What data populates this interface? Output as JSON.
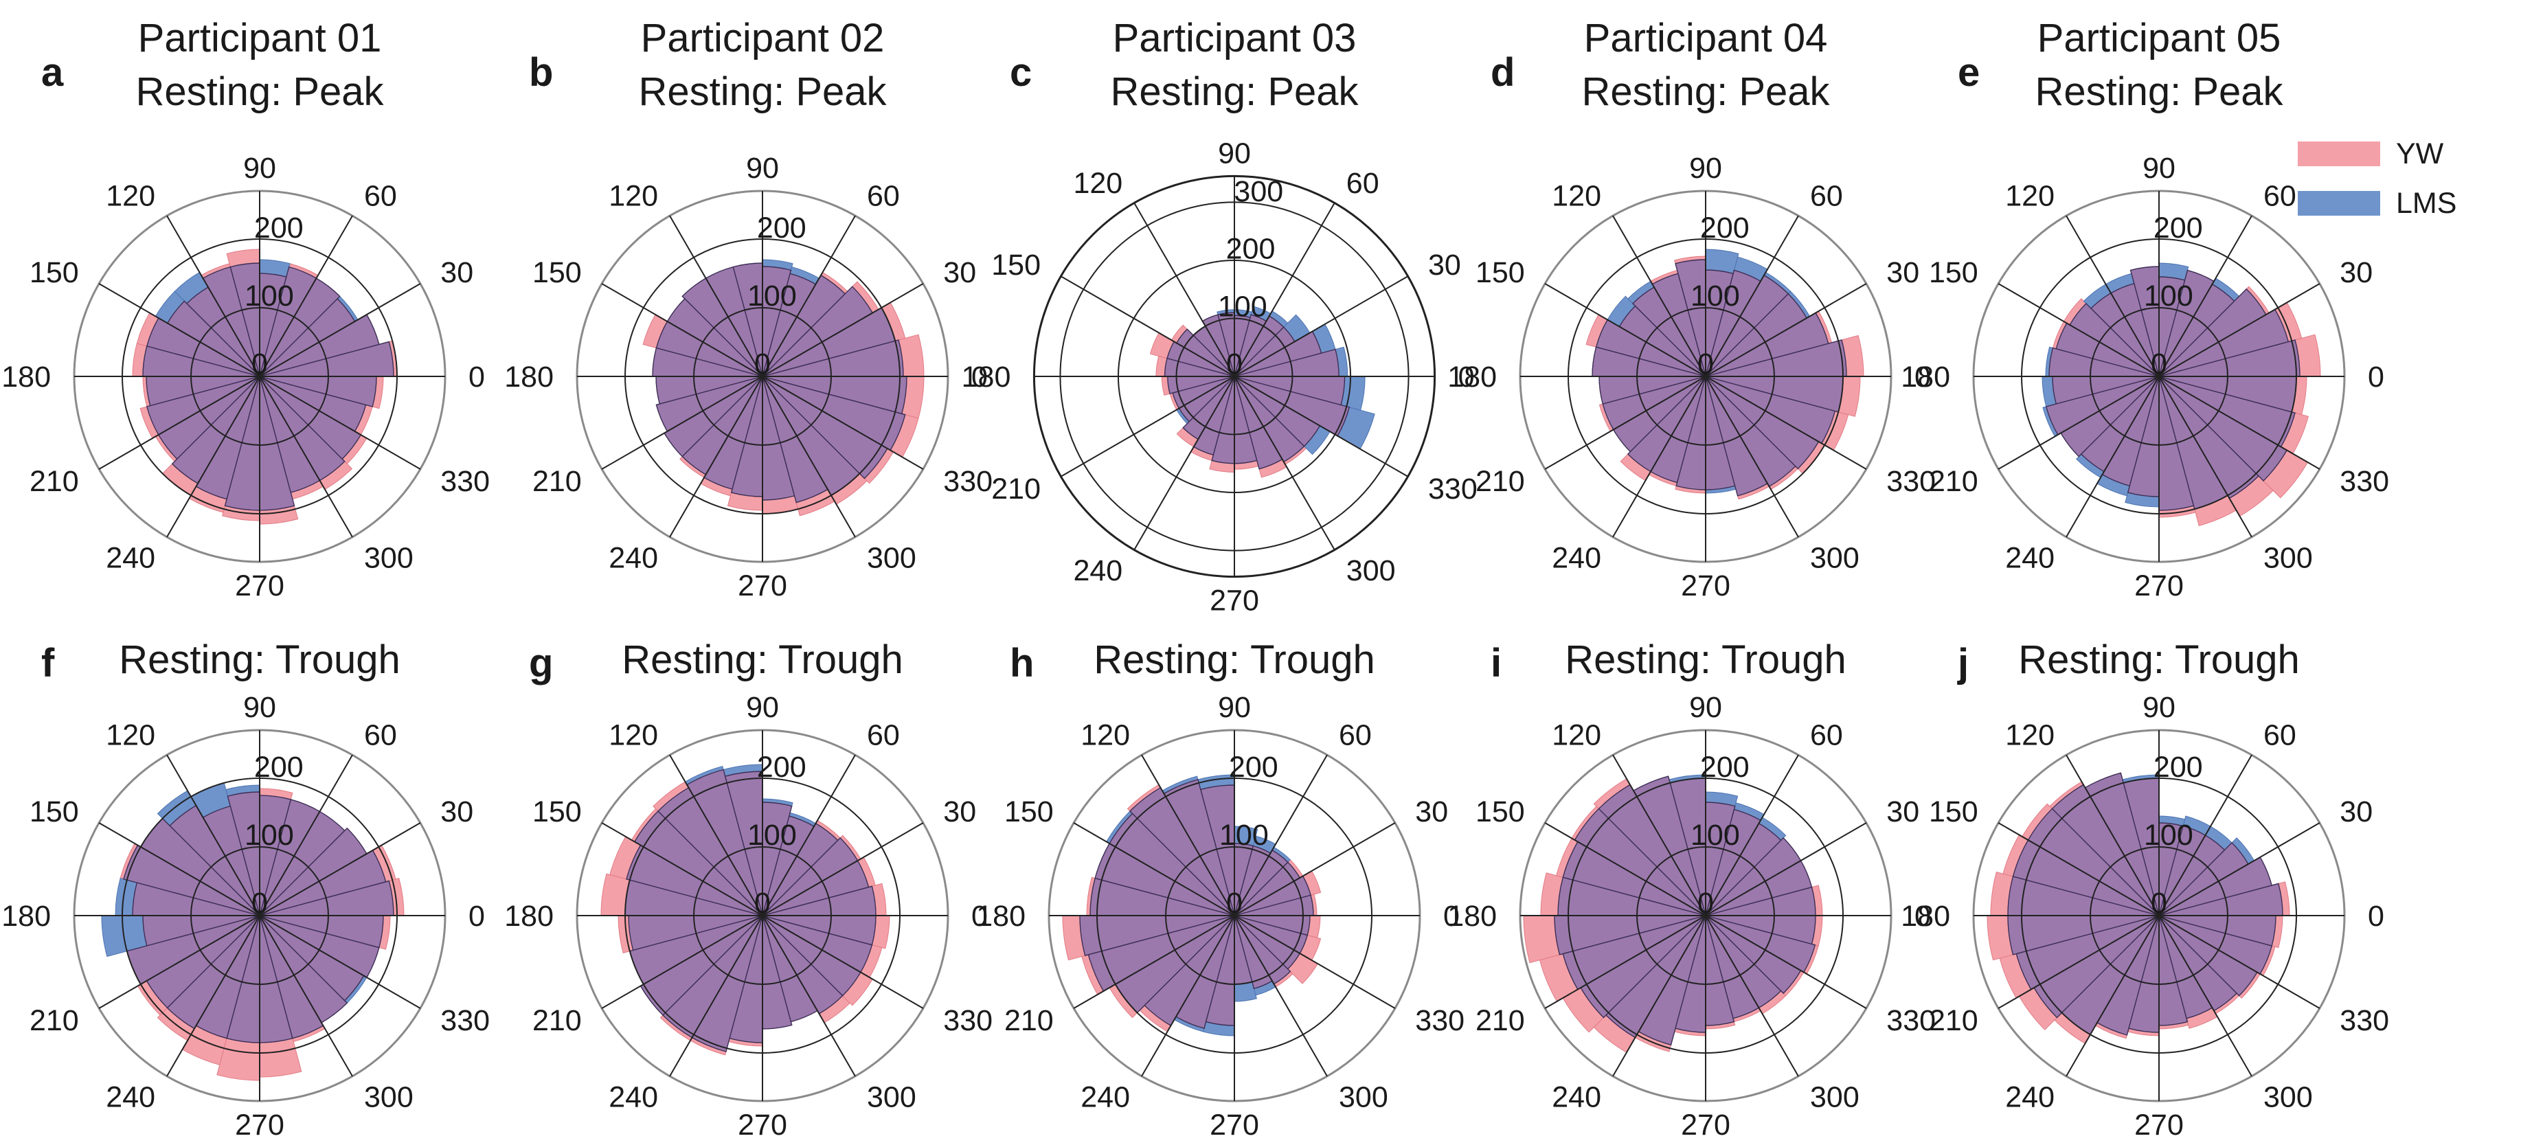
{
  "chart_data": [
    {
      "type": "polar-histogram",
      "letter": "a",
      "title": [
        "Participant 01",
        "Resting: Peak"
      ],
      "angle_ticks": [
        "0",
        "30",
        "60",
        "90",
        "120",
        "150",
        "180",
        "210",
        "240",
        "270",
        "300",
        "330"
      ],
      "radial_ticks": [
        "0",
        "100",
        "200"
      ],
      "rmax": 270,
      "bin_width_deg": 15,
      "series": [
        {
          "name": "YW",
          "values": [
            200,
            180,
            160,
            165,
            170,
            150,
            185,
            170,
            150,
            155,
            185,
            185,
            170,
            180,
            175,
            200,
            205,
            210,
            215,
            185,
            190,
            180,
            170,
            180
          ]
        },
        {
          "name": "LMS",
          "values": [
            195,
            180,
            165,
            165,
            165,
            170,
            165,
            165,
            175,
            175,
            170,
            170,
            165,
            170,
            170,
            180,
            185,
            195,
            195,
            175,
            175,
            170,
            160,
            170
          ]
        }
      ]
    },
    {
      "type": "polar-histogram",
      "letter": "b",
      "title": [
        "Participant 02",
        "Resting: Peak"
      ],
      "angle_ticks": [
        "0",
        "30",
        "60",
        "90",
        "120",
        "150",
        "180",
        "210",
        "240",
        "270",
        "300",
        "330"
      ],
      "radial_ticks": [
        "0",
        "100",
        "200"
      ],
      "rmax": 270,
      "bin_width_deg": 15,
      "series": [
        {
          "name": "YW",
          "values": [
            235,
            215,
            195,
            175,
            155,
            160,
            165,
            165,
            165,
            160,
            180,
            160,
            155,
            160,
            165,
            170,
            180,
            195,
            200,
            210,
            215,
            220,
            235,
            235
          ]
        },
        {
          "name": "LMS",
          "values": [
            205,
            200,
            185,
            170,
            165,
            170,
            165,
            165,
            165,
            160,
            160,
            160,
            155,
            160,
            165,
            165,
            170,
            175,
            180,
            190,
            200,
            210,
            215,
            210
          ]
        }
      ]
    },
    {
      "type": "polar-histogram",
      "letter": "c",
      "title": [
        "Participant 03",
        "Resting: Peak"
      ],
      "angle_ticks": [
        "0",
        "30",
        "60",
        "90",
        "120",
        "150",
        "180",
        "210",
        "240",
        "270",
        "300",
        "330"
      ],
      "radial_ticks": [
        "0",
        "100",
        "200",
        "300"
      ],
      "rmax": 345,
      "bin_width_deg": 15,
      "series": [
        {
          "name": "YW",
          "values": [
            180,
            155,
            120,
            120,
            110,
            105,
            110,
            110,
            100,
            125,
            150,
            135,
            125,
            115,
            110,
            140,
            150,
            165,
            160,
            180,
            175,
            170,
            205,
            190
          ]
        },
        {
          "name": "LMS",
          "values": [
            195,
            180,
            150,
            130,
            125,
            115,
            115,
            110,
            100,
            115,
            120,
            120,
            115,
            110,
            115,
            125,
            140,
            150,
            150,
            165,
            170,
            190,
            250,
            225
          ]
        }
      ]
    },
    {
      "type": "polar-histogram",
      "letter": "d",
      "title": [
        "Participant 04",
        "Resting: Peak"
      ],
      "angle_ticks": [
        "0",
        "30",
        "60",
        "90",
        "120",
        "150",
        "180",
        "210",
        "240",
        "270",
        "300",
        "330"
      ],
      "radial_ticks": [
        "0",
        "100",
        "200"
      ],
      "rmax": 270,
      "bin_width_deg": 15,
      "series": [
        {
          "name": "YW",
          "values": [
            230,
            190,
            170,
            170,
            160,
            155,
            175,
            160,
            150,
            145,
            180,
            165,
            155,
            160,
            155,
            175,
            165,
            170,
            165,
            185,
            190,
            200,
            215,
            225
          ]
        },
        {
          "name": "LMS",
          "values": [
            205,
            185,
            175,
            175,
            180,
            185,
            170,
            155,
            160,
            165,
            165,
            165,
            155,
            155,
            155,
            160,
            160,
            165,
            170,
            180,
            185,
            190,
            195,
            200
          ]
        }
      ]
    },
    {
      "type": "polar-histogram",
      "letter": "e",
      "title": [
        "Participant 05",
        "Resting: Peak"
      ],
      "angle_ticks": [
        "0",
        "30",
        "60",
        "90",
        "120",
        "150",
        "180",
        "210",
        "240",
        "270",
        "300",
        "330"
      ],
      "radial_ticks": [
        "0",
        "100",
        "200"
      ],
      "rmax": 270,
      "bin_width_deg": 15,
      "series": [
        {
          "name": "YW",
          "values": [
            235,
            215,
            185,
            155,
            160,
            145,
            160,
            140,
            140,
            160,
            160,
            160,
            155,
            170,
            165,
            160,
            165,
            175,
            205,
            225,
            235,
            250,
            225,
            215
          ]
        },
        {
          "name": "LMS",
          "values": [
            205,
            195,
            180,
            165,
            160,
            165,
            160,
            155,
            155,
            150,
            155,
            165,
            170,
            175,
            165,
            170,
            180,
            190,
            195,
            200,
            205,
            215,
            205,
            200
          ]
        }
      ]
    },
    {
      "type": "polar-histogram",
      "letter": "f",
      "title": [
        "Resting: Trough"
      ],
      "angle_ticks": [
        "0",
        "30",
        "60",
        "90",
        "120",
        "150",
        "180",
        "210",
        "240",
        "270",
        "300",
        "330"
      ],
      "radial_ticks": [
        "0",
        "100",
        "200"
      ],
      "rmax": 270,
      "bin_width_deg": 15,
      "series": [
        {
          "name": "YW",
          "values": [
            210,
            205,
            180,
            175,
            175,
            185,
            180,
            165,
            185,
            200,
            210,
            185,
            170,
            200,
            205,
            210,
            225,
            240,
            235,
            190,
            180,
            175,
            180,
            190
          ]
        },
        {
          "name": "LMS",
          "values": [
            195,
            190,
            180,
            175,
            175,
            175,
            190,
            200,
            210,
            200,
            205,
            210,
            230,
            200,
            190,
            190,
            185,
            185,
            185,
            185,
            180,
            180,
            180,
            180
          ]
        }
      ]
    },
    {
      "type": "polar-histogram",
      "letter": "g",
      "title": [
        "Resting: Trough"
      ],
      "angle_ticks": [
        "0",
        "30",
        "60",
        "90",
        "120",
        "150",
        "180",
        "210",
        "240",
        "270",
        "300",
        "330"
      ],
      "radial_ticks": [
        "0",
        "100",
        "200"
      ],
      "rmax": 270,
      "bin_width_deg": 15,
      "series": [
        {
          "name": "YW",
          "values": [
            180,
            170,
            165,
            160,
            150,
            165,
            210,
            220,
            225,
            220,
            230,
            235,
            210,
            200,
            205,
            210,
            210,
            190,
            165,
            160,
            180,
            185,
            180,
            185
          ]
        },
        {
          "name": "LMS",
          "values": [
            165,
            160,
            160,
            155,
            155,
            170,
            220,
            225,
            215,
            215,
            205,
            200,
            195,
            200,
            205,
            205,
            205,
            185,
            165,
            160,
            165,
            165,
            165,
            165
          ]
        }
      ]
    },
    {
      "type": "polar-histogram",
      "letter": "h",
      "title": [
        "Resting: Trough"
      ],
      "angle_ticks": [
        "0",
        "30",
        "60",
        "90",
        "120",
        "150",
        "180",
        "210",
        "240",
        "270",
        "300",
        "330"
      ],
      "radial_ticks": [
        "0",
        "100",
        "200"
      ],
      "rmax": 270,
      "bin_width_deg": 15,
      "series": [
        {
          "name": "YW",
          "values": [
            120,
            130,
            115,
            110,
            105,
            105,
            190,
            205,
            220,
            210,
            210,
            215,
            250,
            230,
            210,
            195,
            170,
            160,
            100,
            110,
            120,
            140,
            130,
            125
          ]
        },
        {
          "name": "LMS",
          "values": [
            115,
            115,
            110,
            115,
            120,
            130,
            205,
            210,
            215,
            215,
            210,
            210,
            225,
            220,
            200,
            185,
            175,
            175,
            125,
            120,
            115,
            110,
            110,
            110
          ]
        }
      ]
    },
    {
      "type": "polar-histogram",
      "letter": "i",
      "title": [
        "Resting: Trough"
      ],
      "angle_ticks": [
        "0",
        "30",
        "60",
        "90",
        "120",
        "150",
        "180",
        "210",
        "240",
        "270",
        "300",
        "330"
      ],
      "radial_ticks": [
        "0",
        "100",
        "200"
      ],
      "rmax": 270,
      "bin_width_deg": 15,
      "series": [
        {
          "name": "YW",
          "values": [
            170,
            160,
            160,
            155,
            160,
            165,
            200,
            210,
            230,
            225,
            225,
            240,
            265,
            250,
            240,
            230,
            205,
            175,
            165,
            160,
            165,
            165,
            170,
            170
          ]
        },
        {
          "name": "LMS",
          "values": [
            160,
            160,
            160,
            165,
            170,
            180,
            205,
            210,
            220,
            220,
            215,
            215,
            220,
            215,
            210,
            205,
            195,
            170,
            160,
            155,
            155,
            160,
            165,
            160
          ]
        }
      ]
    },
    {
      "type": "polar-histogram",
      "letter": "j",
      "title": [
        "Resting: Trough"
      ],
      "angle_ticks": [
        "0",
        "30",
        "60",
        "90",
        "120",
        "150",
        "180",
        "210",
        "240",
        "270",
        "300",
        "330"
      ],
      "radial_ticks": [
        "0",
        "100",
        "200"
      ],
      "rmax": 270,
      "bin_width_deg": 15,
      "series": [
        {
          "name": "YW",
          "values": [
            190,
            170,
            150,
            135,
            135,
            135,
            200,
            215,
            225,
            230,
            235,
            245,
            250,
            240,
            235,
            215,
            185,
            175,
            165,
            170,
            165,
            170,
            175,
            180
          ]
        },
        {
          "name": "LMS",
          "values": [
            180,
            170,
            160,
            150,
            150,
            145,
            205,
            215,
            220,
            220,
            220,
            220,
            220,
            215,
            210,
            200,
            180,
            170,
            160,
            155,
            160,
            165,
            170,
            170
          ]
        }
      ]
    }
  ],
  "legend": [
    {
      "name": "YW",
      "color": "#f4a0a8"
    },
    {
      "name": "LMS",
      "color": "#6f94cc"
    }
  ],
  "colors": {
    "overlap": "#9b79ad",
    "yw": "#f4a0a8",
    "lms": "#6f94cc"
  }
}
